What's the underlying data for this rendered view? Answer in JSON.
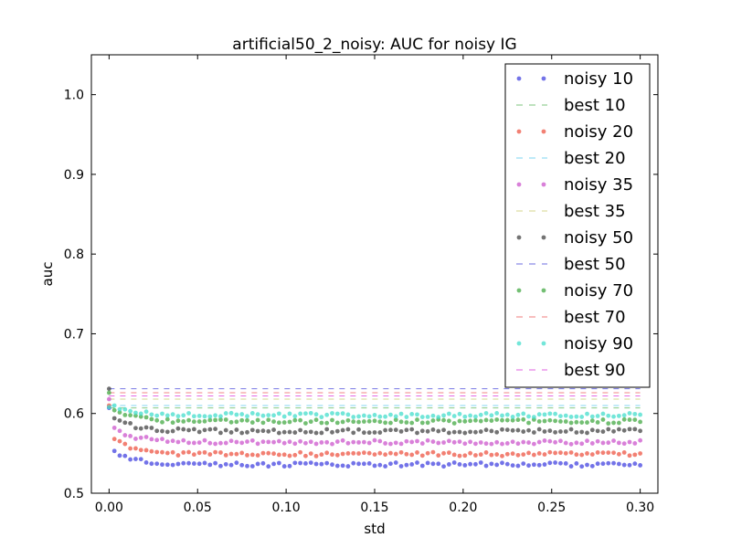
{
  "chart_data": {
    "type": "scatter",
    "title": "artificial50_2_noisy: AUC for noisy IG",
    "xlabel": "std",
    "ylabel": "auc",
    "xlim": [
      -0.01,
      0.31
    ],
    "ylim": [
      0.5,
      1.05
    ],
    "x_ticks": [
      0.0,
      0.05,
      0.1,
      0.15,
      0.2,
      0.25,
      0.3
    ],
    "x_tick_labels": [
      "0.00",
      "0.05",
      "0.10",
      "0.15",
      "0.20",
      "0.25",
      "0.30"
    ],
    "y_ticks": [
      0.5,
      0.6,
      0.7,
      0.8,
      0.9,
      1.0
    ],
    "y_tick_labels": [
      "0.5",
      "0.6",
      "0.7",
      "0.8",
      "0.9",
      "1.0"
    ],
    "grid": false,
    "legend_position": "top-right",
    "x": {
      "start": 0.0,
      "end": 0.3,
      "step": 0.003
    },
    "series": [
      {
        "name": "noisy 10",
        "kind": "points",
        "color": "#4444e0",
        "start": 0.607,
        "first": 0.553,
        "level": 0.536
      },
      {
        "name": "best 10",
        "kind": "dashed",
        "color": "#66bb66",
        "value": 0.607
      },
      {
        "name": "noisy 20",
        "kind": "points",
        "color": "#ee5544",
        "start": 0.61,
        "first": 0.568,
        "level": 0.549
      },
      {
        "name": "best 20",
        "kind": "dashed",
        "color": "#66ccee",
        "value": 0.61
      },
      {
        "name": "noisy 35",
        "kind": "points",
        "color": "#cc55cc",
        "start": 0.618,
        "first": 0.582,
        "level": 0.564
      },
      {
        "name": "best 35",
        "kind": "dashed",
        "color": "#cccc77",
        "value": 0.618
      },
      {
        "name": "noisy 50",
        "kind": "points",
        "color": "#444444",
        "start": 0.631,
        "first": 0.594,
        "level": 0.578
      },
      {
        "name": "best 50",
        "kind": "dashed",
        "color": "#5555dd",
        "value": 0.631
      },
      {
        "name": "noisy 70",
        "kind": "points",
        "color": "#44aa44",
        "start": 0.626,
        "first": 0.604,
        "level": 0.59
      },
      {
        "name": "best 70",
        "kind": "dashed",
        "color": "#ee6666",
        "value": 0.626
      },
      {
        "name": "noisy 90",
        "kind": "points",
        "color": "#44ddcc",
        "start": 0.608,
        "first": 0.61,
        "level": 0.598
      },
      {
        "name": "best 90",
        "kind": "dashed",
        "color": "#dd44dd",
        "value": 0.622
      }
    ]
  }
}
